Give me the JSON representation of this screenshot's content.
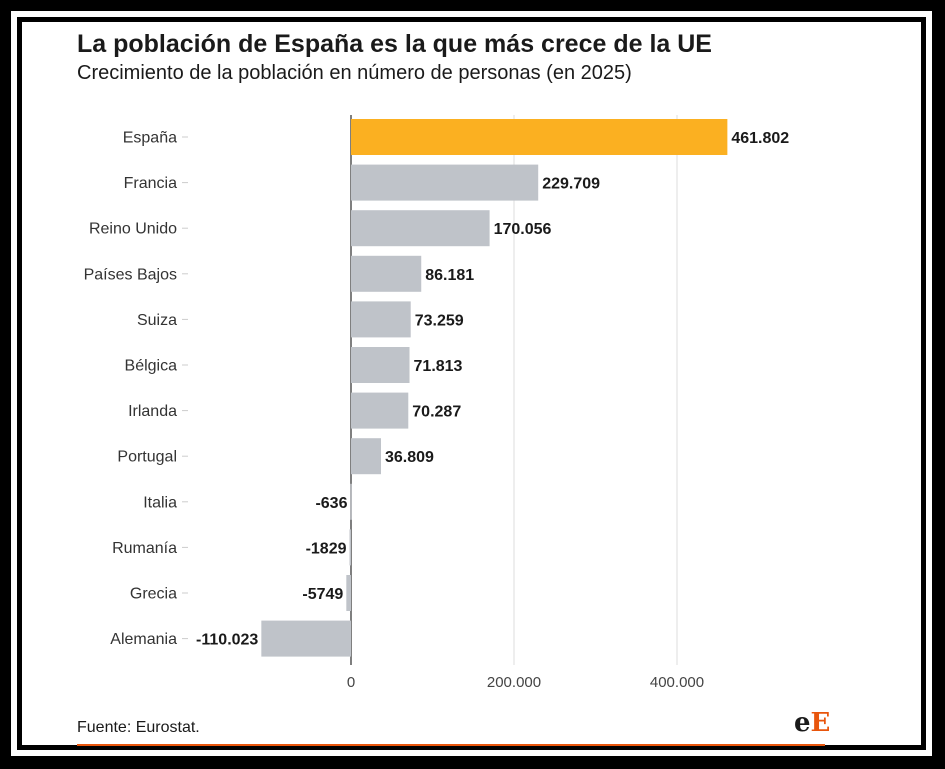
{
  "header": {
    "title": "La población de España es la que más crece de la UE",
    "subtitle": "Crecimiento de la población en número de personas (en 2025)"
  },
  "footer": {
    "source": "Fuente: Eurostat.",
    "logo_first": "e",
    "logo_second": "E"
  },
  "colors": {
    "highlight": "#fbb021",
    "bar": "#bfc3c9",
    "brand": "#e8550c"
  },
  "chart_data": {
    "type": "bar",
    "orientation": "horizontal",
    "title": "La población de España es la que más crece de la UE",
    "subtitle": "Crecimiento de la población en número de personas (en 2025)",
    "categories": [
      "España",
      "Francia",
      "Reino Unido",
      "Países Bajos",
      "Suiza",
      "Bélgica",
      "Irlanda",
      "Portugal",
      "Italia",
      "Rumanía",
      "Grecia",
      "Alemania"
    ],
    "values": [
      461802,
      229709,
      170056,
      86181,
      73259,
      71813,
      70287,
      36809,
      -636,
      -1829,
      -5749,
      -110023
    ],
    "value_labels": [
      "461.802",
      "229.709",
      "170.056",
      "86.181",
      "73.259",
      "71.813",
      "70.287",
      "36.809",
      "-636",
      "-1829",
      "-5749",
      "-110.023"
    ],
    "highlight_category": "España",
    "x_ticks": [
      0,
      200000,
      400000
    ],
    "x_tick_labels": [
      "0",
      "200.000",
      "400.000"
    ],
    "xlim": [
      -110023,
      540000
    ],
    "grid": true
  }
}
